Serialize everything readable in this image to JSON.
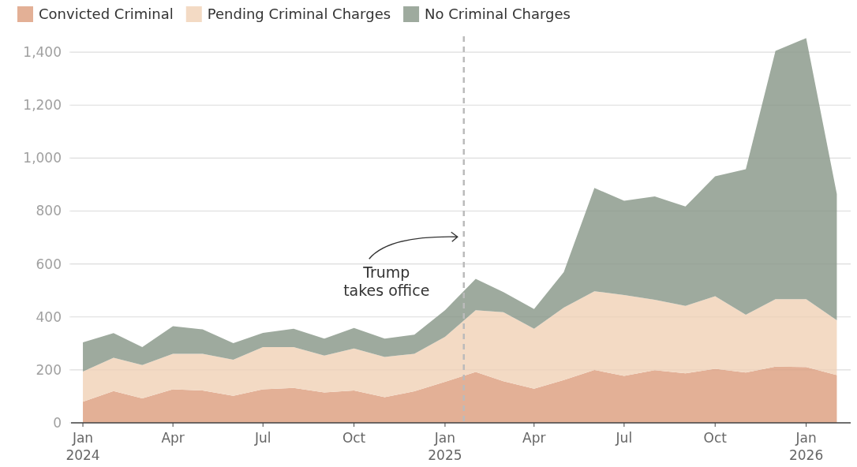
{
  "chart_data": {
    "type": "area",
    "stacked": true,
    "x": [
      "2024-01",
      "2024-02",
      "2024-03",
      "2024-04",
      "2024-05",
      "2024-06",
      "2024-07",
      "2024-08",
      "2024-09",
      "2024-10",
      "2024-11",
      "2024-12",
      "2025-01",
      "2025-02",
      "2025-03",
      "2025-04",
      "2025-05",
      "2025-06",
      "2025-07",
      "2025-08",
      "2025-09",
      "2025-10",
      "2025-11",
      "2025-12",
      "2026-01",
      "2026-02"
    ],
    "series": [
      {
        "name": "Convicted Criminal",
        "color": "#e3b096",
        "values": [
          80,
          120,
          92,
          127,
          122,
          102,
          127,
          132,
          115,
          122,
          97,
          119,
          155,
          192,
          157,
          129,
          162,
          200,
          177,
          199,
          187,
          204,
          190,
          212,
          211,
          180
        ]
      },
      {
        "name": "Pending Criminal Charges",
        "color": "#f3dac4",
        "values": [
          114,
          126,
          126,
          134,
          139,
          136,
          159,
          154,
          139,
          159,
          152,
          142,
          170,
          233,
          261,
          226,
          273,
          297,
          306,
          266,
          255,
          274,
          218,
          255,
          256,
          207
        ]
      },
      {
        "name": "No Criminal Charges",
        "color": "#9eaa9e",
        "values": [
          110,
          93,
          68,
          104,
          92,
          63,
          54,
          69,
          64,
          77,
          69,
          72,
          100,
          119,
          76,
          75,
          134,
          390,
          356,
          390,
          375,
          453,
          550,
          938,
          986,
          477
        ]
      }
    ],
    "xlim": [
      "2023-12-20",
      "2026-02-15"
    ],
    "xticks": [
      {
        "value": "2024-01",
        "label": "Jan\n2024"
      },
      {
        "value": "2024-04",
        "label": "Apr"
      },
      {
        "value": "2024-07",
        "label": "Jul"
      },
      {
        "value": "2024-10",
        "label": "Oct"
      },
      {
        "value": "2025-01",
        "label": "Jan\n2025"
      },
      {
        "value": "2025-04",
        "label": "Apr"
      },
      {
        "value": "2025-07",
        "label": "Jul"
      },
      {
        "value": "2025-10",
        "label": "Oct"
      },
      {
        "value": "2026-01",
        "label": "Jan\n2026"
      }
    ],
    "ylim": [
      0,
      1460
    ],
    "yticks": [
      0,
      200,
      400,
      600,
      800,
      {
        "value": 1000,
        "label": "1,000"
      },
      {
        "value": 1200,
        "label": "1,200"
      },
      {
        "value": 1400,
        "label": "1,400"
      }
    ],
    "grid": "y",
    "legend": "top left",
    "ref_lines": [
      {
        "axis": "x",
        "value": "2025-01-20",
        "label": "Trump\ntakes office",
        "color": "#bbbbbb",
        "line_style": "dashed"
      }
    ]
  }
}
